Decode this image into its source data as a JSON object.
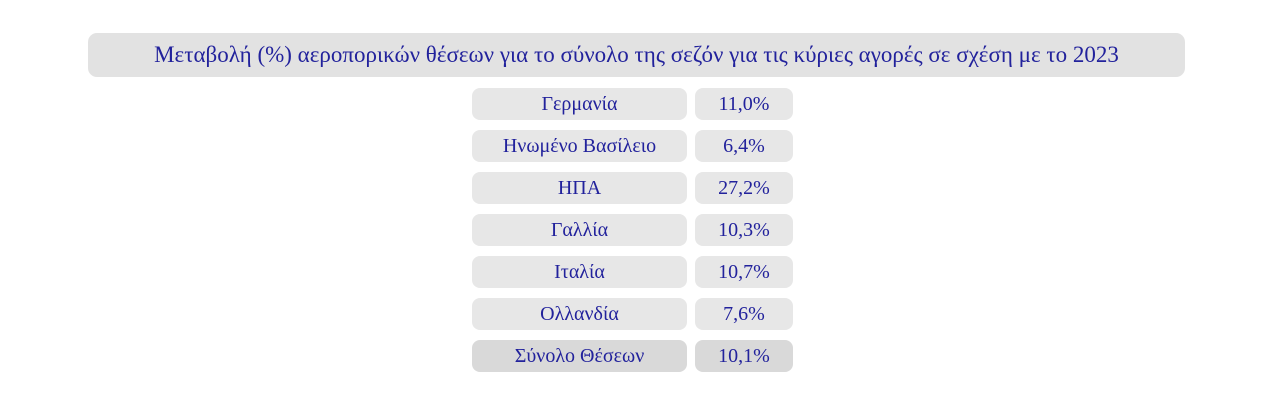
{
  "title": "Μεταβολή (%) αεροπορικών θέσεων για το σύνολο της σεζόν για τις κύριες αγορές σε σχέση με το 2023",
  "colors": {
    "text_blue": "#22229c",
    "row_background": "#e7e7e7",
    "title_background": "#e2e2e2",
    "total_row_background": "#d9d9d9",
    "page_background": "#ffffff"
  },
  "chart_data": {
    "type": "table",
    "title": "Μεταβολή (%) αεροπορικών θέσεων για το σύνολο της σεζόν για τις κύριες αγορές σε σχέση με το 2023",
    "rows": [
      {
        "label": "Γερμανία",
        "value": "11,0%",
        "value_numeric": 11.0,
        "is_total": false
      },
      {
        "label": "Ηνωμένο Βασίλειο",
        "value": "6,4%",
        "value_numeric": 6.4,
        "is_total": false
      },
      {
        "label": "ΗΠΑ",
        "value": "27,2%",
        "value_numeric": 27.2,
        "is_total": false
      },
      {
        "label": "Γαλλία",
        "value": "10,3%",
        "value_numeric": 10.3,
        "is_total": false
      },
      {
        "label": "Ιταλία",
        "value": "10,7%",
        "value_numeric": 10.7,
        "is_total": false
      },
      {
        "label": "Ολλανδία",
        "value": "7,6%",
        "value_numeric": 7.6,
        "is_total": false
      },
      {
        "label": "Σύνολο Θέσεων",
        "value": "10,1%",
        "value_numeric": 10.1,
        "is_total": true
      }
    ]
  }
}
